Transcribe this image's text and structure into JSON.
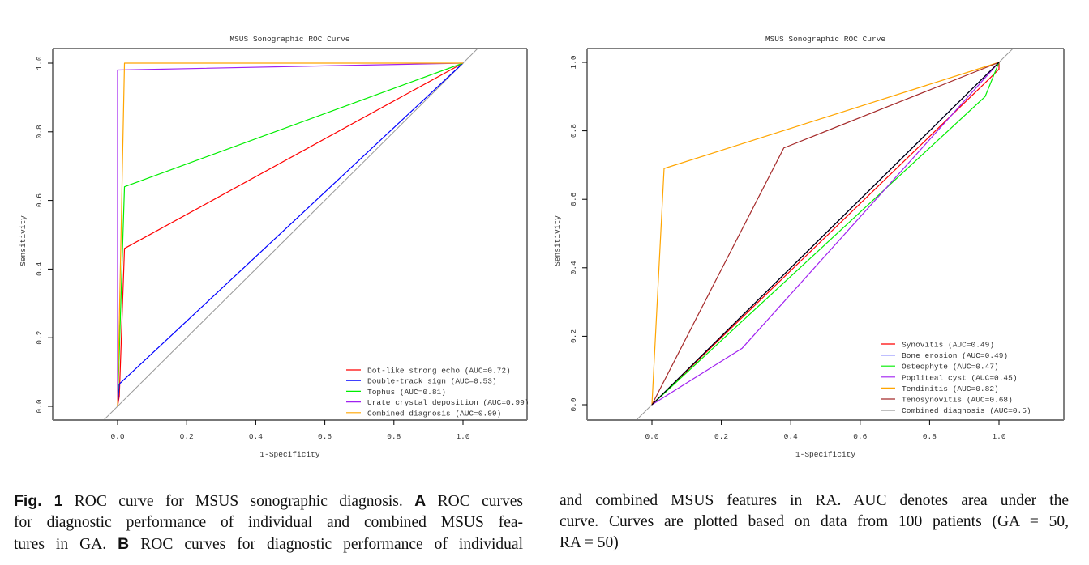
{
  "chart_data": [
    {
      "type": "line",
      "panel": "A",
      "title": "MSUS Sonographic ROC Curve",
      "xlabel": "1-Specificity",
      "ylabel": "Sensitivity",
      "xlim": [
        -0.19,
        1.19
      ],
      "ylim": [
        -0.04,
        1.04
      ],
      "xticks": [
        "0.0",
        "0.2",
        "0.4",
        "0.6",
        "0.8",
        "1.0"
      ],
      "yticks": [
        "0.0",
        "0.2",
        "0.4",
        "0.6",
        "0.8",
        "1.0"
      ],
      "grid": false,
      "legend_position": "bottom-right",
      "reference_line": {
        "color": "#999999",
        "points": [
          [
            -0.3,
            -0.3
          ],
          [
            1.3,
            1.3
          ]
        ]
      },
      "series": [
        {
          "name": "Dot-like strong echo (AUC=0.72)",
          "color": "#ff0000",
          "points": [
            [
              0,
              0
            ],
            [
              0.005,
              0.03
            ],
            [
              0.02,
              0.46
            ],
            [
              1,
              1
            ]
          ]
        },
        {
          "name": "Double-track sign (AUC=0.53)",
          "color": "#0000ff",
          "points": [
            [
              0,
              0
            ],
            [
              0.005,
              0.065
            ],
            [
              1,
              1
            ]
          ]
        },
        {
          "name": "Tophus (AUC=0.81)",
          "color": "#00ee00",
          "points": [
            [
              0,
              0
            ],
            [
              0.02,
              0.64
            ],
            [
              1,
              1
            ]
          ]
        },
        {
          "name": "Urate crystal deposition (AUC=0.99)",
          "color": "#a020f0",
          "points": [
            [
              0,
              0
            ],
            [
              0,
              0.98
            ],
            [
              1,
              1
            ]
          ]
        },
        {
          "name": "Combined diagnosis (AUC=0.99)",
          "color": "#ffa500",
          "points": [
            [
              0,
              0
            ],
            [
              0.02,
              1
            ],
            [
              1,
              1
            ]
          ]
        }
      ]
    },
    {
      "type": "line",
      "panel": "B",
      "title": "MSUS Sonographic ROC Curve",
      "xlabel": "1-Specificity",
      "ylabel": "Sensitivity",
      "xlim": [
        -0.19,
        1.19
      ],
      "ylim": [
        -0.04,
        1.04
      ],
      "xticks": [
        "0.0",
        "0.2",
        "0.4",
        "0.6",
        "0.8",
        "1.0"
      ],
      "yticks": [
        "0.0",
        "0.2",
        "0.4",
        "0.6",
        "0.8",
        "1.0"
      ],
      "grid": false,
      "legend_position": "bottom-right",
      "reference_line": {
        "color": "#999999",
        "points": [
          [
            -0.3,
            -0.3
          ],
          [
            1.3,
            1.3
          ]
        ]
      },
      "series": [
        {
          "name": "Synovitis (AUC=0.49)",
          "color": "#ff0000",
          "points": [
            [
              0,
              0
            ],
            [
              0.97,
              0.95
            ],
            [
              1,
              0.98
            ],
            [
              1,
              1
            ]
          ]
        },
        {
          "name": "Bone erosion (AUC=0.49)",
          "color": "#0000ff",
          "points": [
            [
              0,
              0
            ],
            [
              1,
              1
            ]
          ]
        },
        {
          "name": "Osteophyte (AUC=0.47)",
          "color": "#00ee00",
          "points": [
            [
              0,
              0
            ],
            [
              0.96,
              0.9
            ],
            [
              1,
              1
            ]
          ]
        },
        {
          "name": "Popliteal cyst (AUC=0.45)",
          "color": "#a020f0",
          "points": [
            [
              0,
              0
            ],
            [
              0.26,
              0.165
            ],
            [
              1,
              1
            ]
          ]
        },
        {
          "name": "Tendinitis (AUC=0.82)",
          "color": "#ffa500",
          "points": [
            [
              0,
              0
            ],
            [
              0.035,
              0.69
            ],
            [
              1,
              1
            ]
          ]
        },
        {
          "name": "Tenosynovitis (AUC=0.68)",
          "color": "#a52a2a",
          "points": [
            [
              0,
              0
            ],
            [
              0.38,
              0.75
            ],
            [
              1,
              1
            ]
          ]
        },
        {
          "name": "Combined diagnosis (AUC=0.5)",
          "color": "#000000",
          "points": [
            [
              0,
              0
            ],
            [
              1,
              1
            ]
          ]
        }
      ]
    }
  ],
  "caption": {
    "left_lines": [
      [
        {
          "t": "Fig. 1",
          "b": true
        },
        {
          "t": "  ROC curve for MSUS sonographic diagnosis. "
        },
        {
          "t": "A",
          "b": true
        },
        {
          "t": " ROC curves"
        }
      ],
      [
        {
          "t": "for diagnostic performance of individual and combined MSUS fea-"
        }
      ],
      [
        {
          "t": "tures in GA. "
        },
        {
          "t": "B",
          "b": true
        },
        {
          "t": " ROC curves for diagnostic performance of individual"
        }
      ]
    ],
    "right_lines": [
      [
        {
          "t": "and combined MSUS features in RA. AUC denotes area under the"
        }
      ],
      [
        {
          "t": "curve. Curves are plotted based on data from 100 patients (GA = 50,"
        }
      ],
      [
        {
          "t": "RA = 50)"
        }
      ]
    ]
  }
}
